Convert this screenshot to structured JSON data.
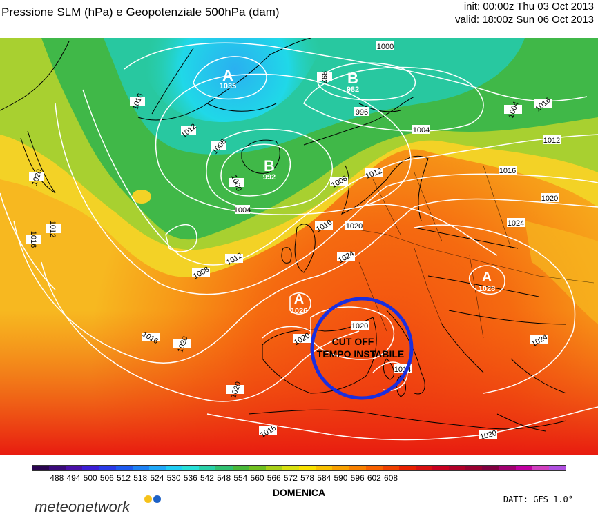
{
  "header": {
    "title": "Pressione SLM (hPa) e Geopotenziale 500hPa (dam)",
    "init": "init: 00:00z Thu 03 Oct 2013",
    "valid": "valid: 18:00z Sun 06 Oct 2013"
  },
  "map": {
    "high_label": "A",
    "low_label": "B",
    "centers": [
      {
        "type": "A",
        "value": "1035"
      },
      {
        "type": "B",
        "value": "982"
      },
      {
        "type": "B",
        "value": "992"
      },
      {
        "type": "A",
        "value": "1026"
      },
      {
        "type": "A",
        "value": "1028"
      }
    ],
    "isobar_labels": [
      "1016",
      "1012",
      "1008",
      "1000",
      "1004",
      "996",
      "992",
      "1000",
      "1004",
      "1008",
      "1012",
      "1016",
      "1020",
      "1020",
      "1016",
      "1012",
      "1008",
      "1012",
      "1016",
      "1020",
      "1024",
      "1024",
      "1020",
      "1020",
      "1016",
      "1020",
      "1024",
      "1020",
      "1016",
      "1016",
      "1004",
      "1012",
      "1020",
      "1014"
    ],
    "annotation": {
      "line1": "CUT OFF",
      "line2": "TEMPO INSTABILE"
    },
    "circle_color": "#1a2ee0"
  },
  "colorbar": {
    "labels": [
      "488",
      "494",
      "500",
      "506",
      "512",
      "518",
      "524",
      "530",
      "536",
      "542",
      "548",
      "554",
      "560",
      "566",
      "572",
      "578",
      "584",
      "590",
      "596",
      "602",
      "608"
    ],
    "colors": [
      "#2a0450",
      "#3a0a7a",
      "#4a10a8",
      "#3c1ed6",
      "#2a3ae8",
      "#1e5af0",
      "#1e82f5",
      "#20a8f8",
      "#20cdf4",
      "#28e0d8",
      "#2ad0a8",
      "#30c070",
      "#48b838",
      "#70c020",
      "#a8d018",
      "#d8e010",
      "#f8e000",
      "#f8c000",
      "#f8a000",
      "#f88000",
      "#f86000",
      "#f04000",
      "#e82000",
      "#d81010",
      "#c80020",
      "#b00028",
      "#980030",
      "#800040",
      "#a00070",
      "#c000a0",
      "#d040c0",
      "#b050e0"
    ],
    "label": "DOMENICA"
  },
  "footer": {
    "logo": "meteonetwork",
    "logo_dot_colors": [
      "#f6c21a",
      "#1d61c6"
    ],
    "source": "DATI: GFS 1.0°"
  }
}
